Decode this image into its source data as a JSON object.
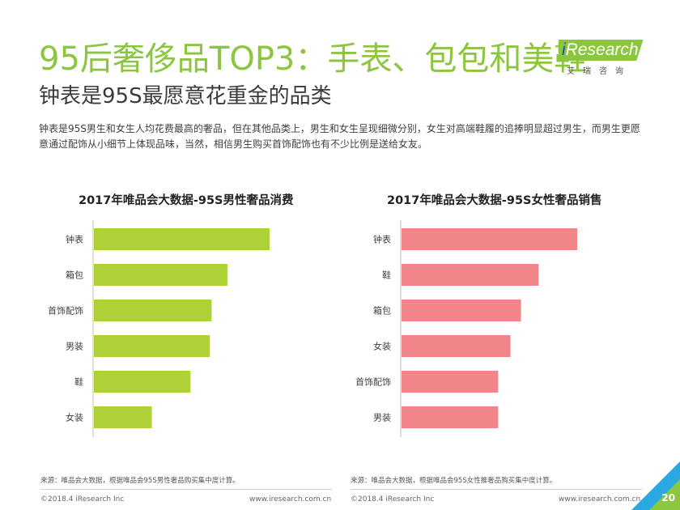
{
  "title": "95后奢侈品TOP3：手表、包包和美鞋",
  "subtitle": "钟表是95S最愿意花重金的品类",
  "logo": {
    "brand_i": "i",
    "brand_rest": "Research",
    "sub": "艾瑞咨询"
  },
  "description": "钟表是95S男生和女生人均花费最高的奢品，但在其他品类上，男生和女生呈现细微分别，女生对高端鞋履的追捧明显超过男生，而男生更愿意通过配饰从小细节上体现品味，当然，相信男生购买首饰配饰也有不少比例是送给女友。",
  "colors": {
    "green": "#add136",
    "pink": "#f2858a",
    "title_green": "#8cc63f"
  },
  "left": {
    "source": "来源：唯品会大数据，根据唯品会95S男性奢品购买集中度计算。",
    "copyright": "©2018.4 iResearch Inc",
    "url": "www.iresearch.com.cn"
  },
  "right": {
    "source": "来源：唯品会大数据，根据唯品会95S女性推奢品购买集中度计算。",
    "copyright": "©2018.4 iResearch Inc",
    "url": "www.iresearch.com.cn"
  },
  "page_number": "20",
  "chart_data": [
    {
      "type": "bar",
      "orientation": "horizontal",
      "title": "2017年唯品会大数据-95S男性奢品消费",
      "categories": [
        "钟表",
        "箱包",
        "首饰配饰",
        "男装",
        "鞋",
        "女装"
      ],
      "values": [
        100,
        76,
        67,
        66,
        55,
        33
      ],
      "xlim": [
        0,
        100
      ],
      "color": "#add136"
    },
    {
      "type": "bar",
      "orientation": "horizontal",
      "title": "2017年唯品会大数据-95S女性奢品销售",
      "categories": [
        "钟表",
        "鞋",
        "箱包",
        "女装",
        "首饰配饰",
        "男装"
      ],
      "values": [
        100,
        78,
        68,
        62,
        55,
        55
      ],
      "xlim": [
        0,
        100
      ],
      "color": "#f2858a"
    }
  ]
}
